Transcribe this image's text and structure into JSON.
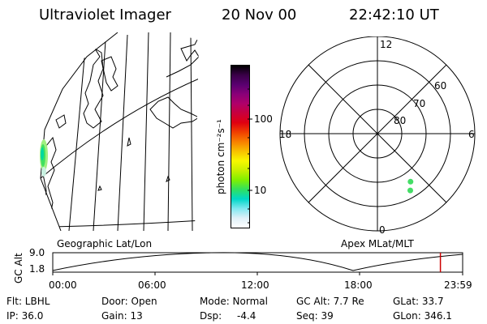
{
  "header": {
    "instrument": "Ultraviolet Imager",
    "date": "20 Nov 00",
    "time": "22:42:10 UT"
  },
  "colorbar": {
    "label": "photon cm⁻²s⁻¹",
    "ticks": [
      "100",
      "10"
    ],
    "colors": [
      "#000000",
      "#3a0048",
      "#5a0070",
      "#8a0078",
      "#b0006a",
      "#c8003c",
      "#e00010",
      "#f04000",
      "#f88000",
      "#f8c000",
      "#f8f800",
      "#c8f000",
      "#80f000",
      "#30e060",
      "#00d8c8",
      "#80e8f0",
      "#e0f0f8",
      "#ffffff"
    ]
  },
  "polar_plot": {
    "mlt_labels": [
      "12",
      "18",
      "6",
      "0"
    ],
    "lat_labels": [
      "60",
      "70",
      "80"
    ],
    "points": [
      {
        "mlt": 2.3,
        "mlat": 66,
        "color": "#44dd66"
      },
      {
        "mlt": 2.0,
        "mlat": 63,
        "color": "#44dd66"
      }
    ]
  },
  "timeline": {
    "left_label": "Geographic Lat/Lon",
    "right_label": "Apex MLat/MLT",
    "ylabel": "GC Alt",
    "y_ticks": [
      "9.0",
      "1.8"
    ],
    "x_ticks": [
      "00:00",
      "06:00",
      "12:00",
      "18:00",
      "23:59"
    ],
    "current_time_hours": 22.7,
    "current_marker_color": "#cc0000"
  },
  "footer": {
    "flt": "Flt: LBHL",
    "ip": "IP: 36.0",
    "door": "Door: Open",
    "gain": "Gain: 13",
    "mode": "Mode: Normal",
    "dsp": "Dsp:",
    "dsp_value": "-4.4",
    "gc_alt": "GC Alt: 7.7 Re",
    "seq": "Seq: 39",
    "glat": "GLat: 33.7",
    "glon": "GLon: 346.1"
  }
}
